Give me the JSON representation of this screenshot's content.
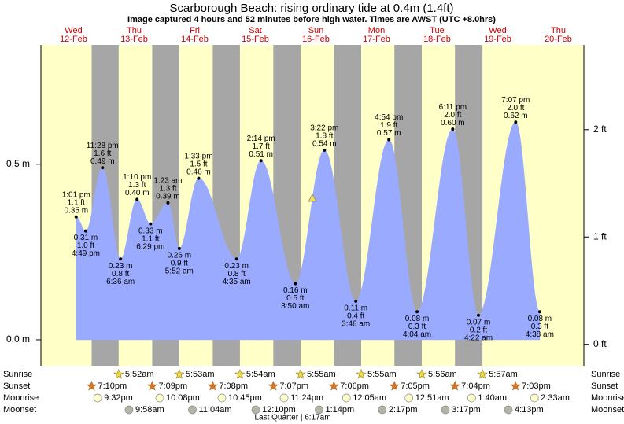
{
  "chart_data": {
    "type": "tide",
    "title": "Scarborough Beach: rising  ordinary tide at 0.4m (1.4ft)",
    "subtitle": "Image captured 4 hours and 52 minutes before high water. Times are AWST (UTC +8.0hrs)",
    "ylim": [
      -0.074,
      0.84
    ],
    "yticks": [
      {
        "value": 0,
        "label": "0.0 m"
      },
      {
        "value": 0.5,
        "label": "0.5 m"
      }
    ],
    "y2lim": [
      -0.2,
      2.79
    ],
    "y2ticks": [
      {
        "value": 0,
        "label": "0 ft"
      },
      {
        "value": 1,
        "label": "1 ft"
      },
      {
        "value": 2,
        "label": "2 ft"
      }
    ],
    "colors": {
      "day": "#ffffc8",
      "night": "#a6a6a6",
      "water": "#9aaaff",
      "date": "#cc0000"
    },
    "rows": [
      "Sunrise",
      "Sunset",
      "Moonrise",
      "Moonset"
    ],
    "moon_phase": "Last Quarter | 6:17am",
    "days": [
      {
        "name": "Wed",
        "date": "12-Feb",
        "sunset": "7:10pm",
        "moonrise": "9:32pm",
        "tides": [
          {
            "time": "1:01 pm",
            "ft": "1.1 ft",
            "value": 0.35,
            "value_label": "0.35 m"
          },
          {
            "time": "4:49 pm",
            "ft": "1.0 ft",
            "value": 0.31,
            "value_label": "0.31 m"
          },
          {
            "time": "11:28 pm",
            "ft": "1.6 ft",
            "value": 0.49,
            "value_label": "0.49 m"
          }
        ]
      },
      {
        "name": "Thu",
        "date": "13-Feb",
        "sunrise": "5:52am",
        "sunset": "7:09pm",
        "moonrise": "10:08pm",
        "moonset": "9:58am",
        "tides": [
          {
            "time": "6:36 am",
            "ft": "0.8 ft",
            "value": 0.23,
            "value_label": "0.23 m"
          },
          {
            "time": "1:10 pm",
            "ft": "1.3 ft",
            "value": 0.4,
            "value_label": "0.40 m"
          },
          {
            "time": "6:29 pm",
            "ft": "1.1 ft",
            "value": 0.33,
            "value_label": "0.33 m"
          }
        ]
      },
      {
        "name": "Fri",
        "date": "14-Feb",
        "sunrise": "5:53am",
        "sunset": "7:08pm",
        "moonrise": "10:45pm",
        "moonset": "11:04am",
        "tides": [
          {
            "time": "1:23 am",
            "ft": "1.3 ft",
            "value": 0.39,
            "value_label": "0.39 m"
          },
          {
            "time": "5:52 am",
            "ft": "0.9 ft",
            "value": 0.26,
            "value_label": "0.26 m"
          },
          {
            "time": "1:33 pm",
            "ft": "1.5 ft",
            "value": 0.46,
            "value_label": "0.46 m"
          }
        ]
      },
      {
        "name": "Sat",
        "date": "15-Feb",
        "sunrise": "5:54am",
        "sunset": "7:07pm",
        "moonrise": "11:24pm",
        "moonset": "12:10pm",
        "tides": [
          {
            "time": "4:35 am",
            "ft": "0.8 ft",
            "value": 0.23,
            "value_label": "0.23 m"
          },
          {
            "time": "2:14 pm",
            "ft": "1.7 ft",
            "value": 0.51,
            "value_label": "0.51 m"
          }
        ]
      },
      {
        "name": "Sun",
        "date": "16-Feb",
        "sunrise": "5:55am",
        "sunset": "7:06pm",
        "moonset": "1:14pm",
        "tides": [
          {
            "time": "3:50 am",
            "ft": "0.5 ft",
            "value": 0.16,
            "value_label": "0.16 m"
          },
          {
            "time": "3:22 pm",
            "ft": "1.8 ft",
            "value": 0.54,
            "value_label": "0.54 m"
          }
        ]
      },
      {
        "name": "Mon",
        "date": "17-Feb",
        "sunrise": "5:55am",
        "sunset": "7:05pm",
        "moonrise": "12:05am",
        "moonset": "2:17pm",
        "tides": [
          {
            "time": "3:48 am",
            "ft": "0.4 ft",
            "value": 0.11,
            "value_label": "0.11 m"
          },
          {
            "time": "4:54 pm",
            "ft": "1.9 ft",
            "value": 0.57,
            "value_label": "0.57 m"
          }
        ]
      },
      {
        "name": "Tue",
        "date": "18-Feb",
        "sunrise": "5:56am",
        "sunset": "7:04pm",
        "moonrise": "12:51am",
        "moonset": "3:17pm",
        "tides": [
          {
            "time": "4:04 am",
            "ft": "0.3 ft",
            "value": 0.08,
            "value_label": "0.08 m"
          },
          {
            "time": "6:11 pm",
            "ft": "2.0 ft",
            "value": 0.6,
            "value_label": "0.60 m"
          }
        ]
      },
      {
        "name": "Wed",
        "date": "19-Feb",
        "sunrise": "5:57am",
        "sunset": "7:03pm",
        "moonrise": "1:40am",
        "moonset": "4:13pm",
        "tides": [
          {
            "time": "4:22 am",
            "ft": "0.2 ft",
            "value": 0.07,
            "value_label": "0.07 m"
          },
          {
            "time": "7:07 pm",
            "ft": "2.0 ft",
            "value": 0.62,
            "value_label": "0.62 m"
          }
        ]
      },
      {
        "name": "Thu",
        "date": "20-Feb",
        "moonrise": "2:33am",
        "tides": [
          {
            "time": "4:38 am",
            "ft": "0.3 ft",
            "value": 0.08,
            "value_label": "0.08 m"
          }
        ]
      }
    ]
  }
}
